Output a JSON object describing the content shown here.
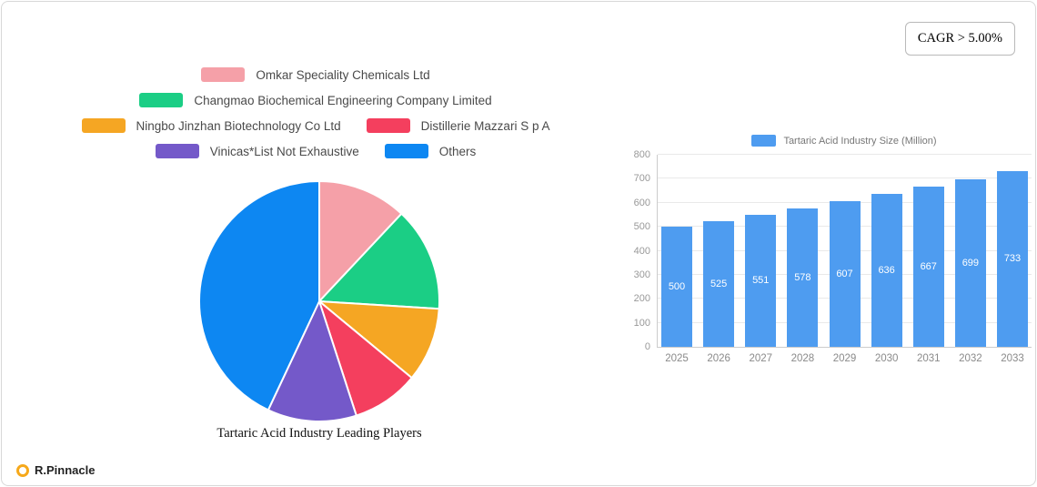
{
  "badge": {
    "label": "CAGR > 5.00%"
  },
  "logo": {
    "label": "R.Pinnacle"
  },
  "pie_section": {
    "title": "Tartaric Acid Industry Leading Players"
  },
  "chart_data": [
    {
      "type": "pie",
      "title": "Tartaric Acid Industry Leading Players",
      "labels": [
        "Omkar Speciality Chemicals Ltd",
        "Changmao Biochemical Engineering Company Limited",
        "Ningbo Jinzhan Biotechnology Co Ltd",
        "Distillerie Mazzari S p A",
        "Vinicas*List Not Exhaustive",
        "Others"
      ],
      "values_percent": [
        12,
        14,
        10,
        9,
        12,
        43
      ],
      "colors": [
        "#F5A0A8",
        "#1BCE85",
        "#F5A623",
        "#F43F5E",
        "#7459C9",
        "#0D87F2"
      ],
      "legend_rows": [
        [
          0
        ],
        [
          1
        ],
        [
          2,
          3
        ],
        [
          4,
          5
        ]
      ],
      "legend_position": "top"
    },
    {
      "type": "bar",
      "legend_label": "Tartaric Acid Industry Size (Million)",
      "categories": [
        "2025",
        "2026",
        "2027",
        "2028",
        "2029",
        "2030",
        "2031",
        "2032",
        "2033"
      ],
      "values": [
        500,
        525,
        551,
        578,
        607,
        636,
        667,
        699,
        733
      ],
      "ylim": [
        0,
        800
      ],
      "yticks": [
        0,
        100,
        200,
        300,
        400,
        500,
        600,
        700,
        800
      ],
      "bar_color": "#4E9CF0",
      "grid": true,
      "legend_position": "top"
    }
  ]
}
